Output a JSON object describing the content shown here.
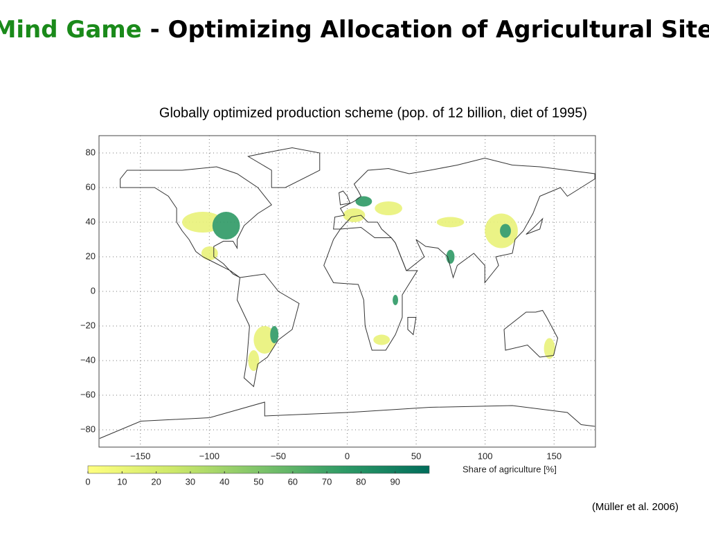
{
  "chart_data": {
    "type": "map",
    "title_highlight": "Mind Game",
    "title": "- Optimizing Allocation of Agricultural Sites",
    "subtitle": "Globally optimized production scheme (pop. of 12 billion, diet of 1995)",
    "xlim": [
      -180,
      180
    ],
    "ylim": [
      -90,
      90
    ],
    "xticks": [
      {
        "value": -150,
        "label": "−150"
      },
      {
        "value": -100,
        "label": "−100"
      },
      {
        "value": -50,
        "label": "−50"
      },
      0,
      50,
      100,
      150
    ],
    "yticks": [
      {
        "value": -80,
        "label": "−80"
      },
      {
        "value": -60,
        "label": "−60"
      },
      {
        "value": -40,
        "label": "−40"
      },
      {
        "value": -20,
        "label": "−20"
      },
      0,
      20,
      40,
      60,
      80
    ],
    "grid": true,
    "colorbar": {
      "label": "Share of agriculture [%]",
      "clim": [
        0,
        100
      ],
      "ticks": [
        0,
        10,
        20,
        30,
        40,
        50,
        60,
        70,
        80,
        90
      ],
      "colors": [
        "#ffff80",
        "#cde86a",
        "#7fc46a",
        "#2e9a66",
        "#006d5b"
      ]
    },
    "citation": "(Müller et al. 2006)"
  }
}
